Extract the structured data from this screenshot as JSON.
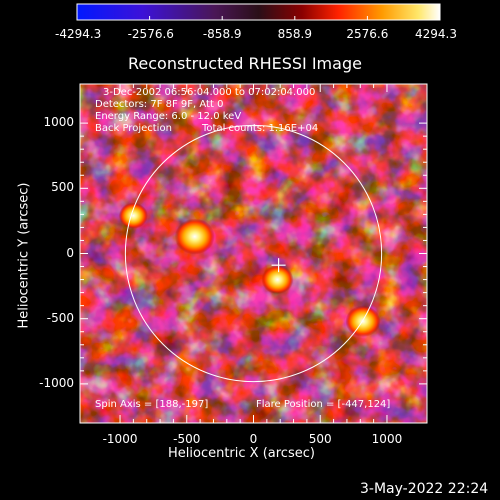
{
  "colorbar": {
    "tick_labels": [
      "-4294.3",
      "-2576.6",
      "-858.9",
      "858.9",
      "2576.6",
      "4294.3"
    ],
    "colors": [
      "#0000ff",
      "#4b00b3",
      "#3a0a3a",
      "#ff0000",
      "#ff9900",
      "#ffffff"
    ]
  },
  "chart_data": {
    "type": "heatmap",
    "title": "Reconstructed RHESSI Image",
    "xlabel": "Heliocentric X (arcsec)",
    "ylabel": "Heliocentric Y (arcsec)",
    "xlim": [
      -1300,
      1300
    ],
    "ylim": [
      -1300,
      1300
    ],
    "x_ticks": [
      -1000,
      -500,
      0,
      500,
      1000
    ],
    "y_ticks": [
      -1000,
      -500,
      0,
      500,
      1000
    ],
    "x_tick_labels": [
      "-1000",
      "-500",
      "0",
      "500",
      "1000"
    ],
    "y_tick_labels": [
      "-1000",
      "-500",
      "0",
      "500",
      "1000"
    ],
    "sun_radius_arcsec": 960,
    "disk_center": [
      0,
      0
    ],
    "spin_axis": [
      188,
      -197
    ],
    "flare_position": [
      -447,
      124
    ],
    "bright_sources": [
      {
        "x": -440,
        "y": 130,
        "intensity": 1.0
      },
      {
        "x": 180,
        "y": -200,
        "intensity": 0.6
      },
      {
        "x": 820,
        "y": -520,
        "intensity": 0.75
      },
      {
        "x": -900,
        "y": 290,
        "intensity": 0.45
      }
    ],
    "info_lines": [
      "3-Dec-2002 06:56:04.000 to 07:02:04.000",
      "Detectors: 7F 8F 9F, Att 0",
      "Energy Range: 6.0 - 12.0 keV"
    ],
    "back_projection_label": "Back Projection",
    "total_counts_label": "Total counts: 1.16E+04",
    "spin_axis_label": "Spin Axis = [188,-197]",
    "flare_position_label": "Flare Position = [-447,124]"
  },
  "footer": {
    "timestamp": "3-May-2022 22:24"
  }
}
